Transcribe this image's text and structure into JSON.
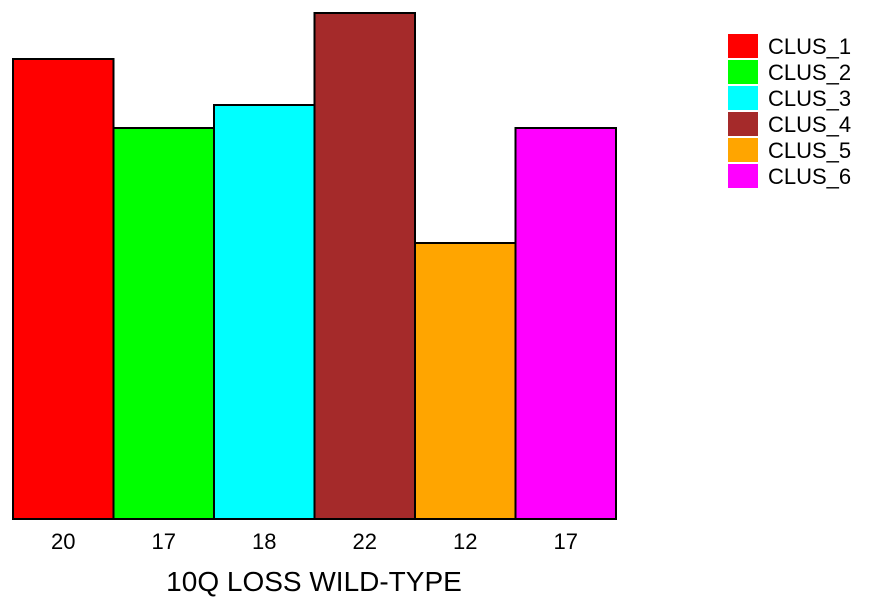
{
  "chart_data": {
    "type": "bar",
    "categories": [
      "CLUS_1",
      "CLUS_2",
      "CLUS_3",
      "CLUS_4",
      "CLUS_5",
      "CLUS_6"
    ],
    "values": [
      20,
      17,
      18,
      22,
      12,
      17
    ],
    "tick_labels": [
      "20",
      "17",
      "18",
      "22",
      "12",
      "17"
    ],
    "colors": [
      "#ff0000",
      "#00ff00",
      "#00ffff",
      "#a52a2a",
      "#ffa500",
      "#ff00ff"
    ],
    "xlabel": "10Q LOSS WILD-TYPE",
    "ylabel": "",
    "ylim": [
      0,
      22
    ],
    "grid": false,
    "legend": {
      "position": "top-right",
      "entries": [
        "CLUS_1",
        "CLUS_2",
        "CLUS_3",
        "CLUS_4",
        "CLUS_5",
        "CLUS_6"
      ]
    }
  }
}
